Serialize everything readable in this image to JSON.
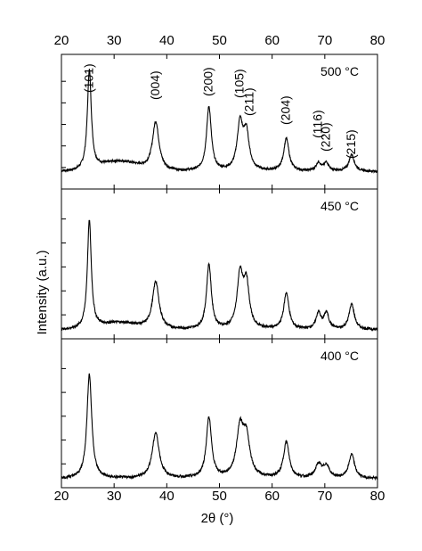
{
  "chart_data": {
    "type": "line",
    "xlabel": "2θ (°)",
    "ylabel": "Intensity (a.u.)",
    "xlim": [
      20,
      80
    ],
    "x_ticks": [
      "20",
      "30",
      "40",
      "50",
      "60",
      "70",
      "80"
    ],
    "grid": false,
    "legend": "none",
    "panels": [
      {
        "label": "500 °C",
        "baseline": 0.12,
        "peaks": [
          {
            "x": 25.3,
            "height": 0.82,
            "width": 0.45
          },
          {
            "x": 37.9,
            "height": 0.4,
            "width": 0.75
          },
          {
            "x": 48.0,
            "height": 0.53,
            "width": 0.55
          },
          {
            "x": 53.9,
            "height": 0.38,
            "width": 0.65
          },
          {
            "x": 55.1,
            "height": 0.3,
            "width": 0.65
          },
          {
            "x": 62.7,
            "height": 0.27,
            "width": 0.6
          },
          {
            "x": 68.8,
            "height": 0.07,
            "width": 0.55
          },
          {
            "x": 70.3,
            "height": 0.07,
            "width": 0.55
          },
          {
            "x": 75.1,
            "height": 0.14,
            "width": 0.6
          }
        ],
        "hump": {
          "x": 31,
          "height": 0.08,
          "width": 5
        }
      },
      {
        "label": "450 °C",
        "baseline": 0.05,
        "peaks": [
          {
            "x": 25.3,
            "height": 0.8,
            "width": 0.45
          },
          {
            "x": 37.9,
            "height": 0.35,
            "width": 0.75
          },
          {
            "x": 48.0,
            "height": 0.48,
            "width": 0.55
          },
          {
            "x": 53.9,
            "height": 0.39,
            "width": 0.65
          },
          {
            "x": 55.1,
            "height": 0.33,
            "width": 0.65
          },
          {
            "x": 62.7,
            "height": 0.27,
            "width": 0.6
          },
          {
            "x": 68.8,
            "height": 0.12,
            "width": 0.55
          },
          {
            "x": 70.3,
            "height": 0.12,
            "width": 0.55
          },
          {
            "x": 75.1,
            "height": 0.19,
            "width": 0.6
          }
        ],
        "hump": {
          "x": 31,
          "height": 0.05,
          "width": 5
        }
      },
      {
        "label": "400 °C",
        "baseline": 0.05,
        "peaks": [
          {
            "x": 25.3,
            "height": 0.78,
            "width": 0.55
          },
          {
            "x": 37.9,
            "height": 0.34,
            "width": 0.8
          },
          {
            "x": 48.0,
            "height": 0.45,
            "width": 0.6
          },
          {
            "x": 53.9,
            "height": 0.35,
            "width": 0.8
          },
          {
            "x": 55.1,
            "height": 0.28,
            "width": 0.8
          },
          {
            "x": 62.7,
            "height": 0.27,
            "width": 0.65
          },
          {
            "x": 68.8,
            "height": 0.1,
            "width": 0.7
          },
          {
            "x": 70.3,
            "height": 0.09,
            "width": 0.7
          },
          {
            "x": 75.1,
            "height": 0.18,
            "width": 0.65
          }
        ],
        "hump": {
          "x": 31,
          "height": 0.0,
          "width": 5
        }
      }
    ],
    "peak_labels": [
      {
        "text": "(101)",
        "x": 25.3
      },
      {
        "text": "(004)",
        "x": 37.9
      },
      {
        "text": "(200)",
        "x": 48.0
      },
      {
        "text": "(105)",
        "x": 53.9
      },
      {
        "text": "(211)",
        "x": 55.1
      },
      {
        "text": "(204)",
        "x": 62.7
      },
      {
        "text": "(116)",
        "x": 68.8
      },
      {
        "text": "(220)",
        "x": 70.3
      },
      {
        "text": "(215)",
        "x": 75.1
      }
    ]
  }
}
